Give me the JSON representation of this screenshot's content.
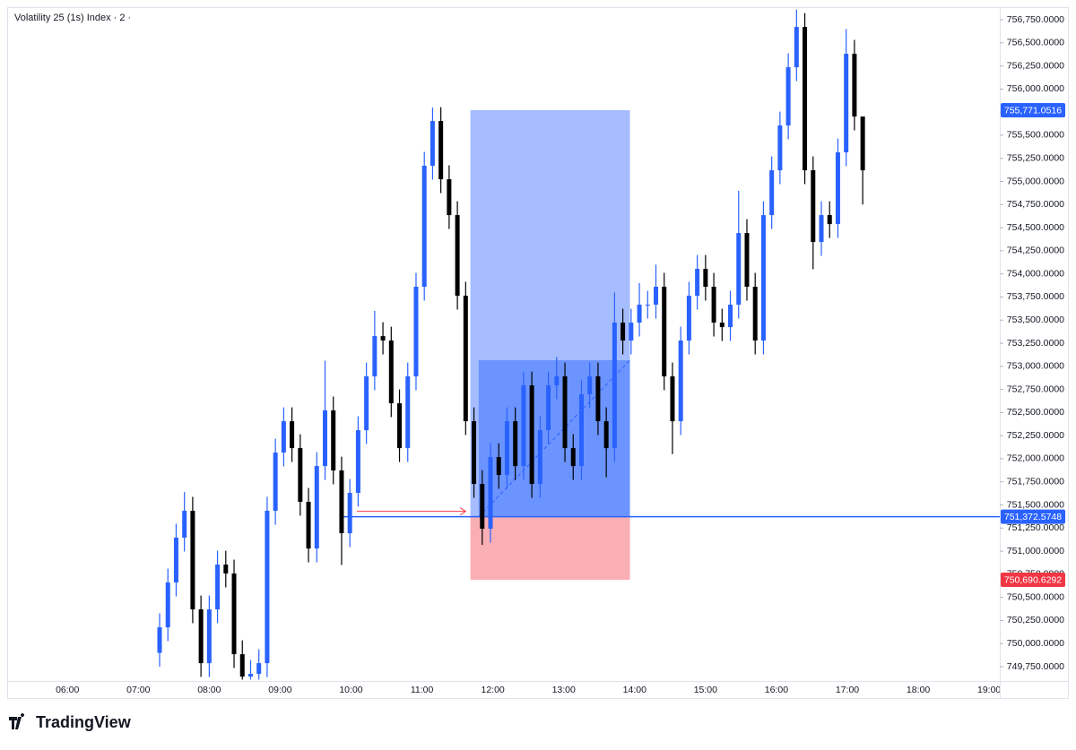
{
  "chart_data": {
    "type": "candlestick",
    "title": "Volatility 25 (1s) Index · 2 ·",
    "up_color": "#2962ff",
    "down_color": "#000000",
    "x": [
      "07:18",
      "07:25",
      "07:32",
      "07:39",
      "07:46",
      "07:53",
      "08:00",
      "08:07",
      "08:14",
      "08:21",
      "08:28",
      "08:35",
      "08:42",
      "08:49",
      "08:56",
      "09:03",
      "09:10",
      "09:17",
      "09:24",
      "09:31",
      "09:38",
      "09:45",
      "09:52",
      "09:59",
      "10:06",
      "10:13",
      "10:20",
      "10:27",
      "10:34",
      "10:41",
      "10:48",
      "10:55",
      "11:02",
      "11:09",
      "11:16",
      "11:23",
      "11:30",
      "11:37",
      "11:44",
      "11:51",
      "11:58",
      "12:05",
      "12:12",
      "12:19",
      "12:26",
      "12:33",
      "12:40",
      "12:47",
      "12:54",
      "13:01",
      "13:08",
      "13:15",
      "13:22",
      "13:29",
      "13:36",
      "13:43",
      "13:50",
      "13:57",
      "14:04",
      "14:11",
      "14:18",
      "14:25",
      "14:32",
      "14:39",
      "14:46",
      "14:53",
      "15:00",
      "15:07",
      "15:14",
      "15:21",
      "15:28",
      "15:35",
      "15:42",
      "15:49",
      "15:56",
      "16:03",
      "16:10",
      "16:17",
      "16:24",
      "16:31",
      "16:38",
      "16:45",
      "16:52",
      "16:59",
      "17:06",
      "17:13"
    ],
    "candles": {
      "open": [
        749900,
        750176,
        750661,
        751146,
        751437,
        750370,
        749788,
        750370,
        750855,
        750758,
        749885,
        749643,
        749672,
        749788,
        751437,
        752067,
        752406,
        752115,
        751534,
        751029,
        751921,
        752523,
        751873,
        751194,
        751631,
        752309,
        752891,
        753327,
        753279,
        752600,
        752115,
        752891,
        753861,
        755170,
        755654,
        755024,
        754636,
        753764,
        752406,
        751727,
        751243,
        752018,
        751824,
        752406,
        751921,
        752794,
        751727,
        752309,
        752794,
        752891,
        752115,
        751921,
        752697,
        752891,
        752406,
        752115,
        753473,
        753279,
        753473,
        753667,
        753667,
        753861,
        752891,
        752406,
        753279,
        753764,
        754055,
        753861,
        753473,
        753424,
        753667,
        754442,
        753861,
        753279,
        754636,
        755121,
        755606,
        756236,
        756672,
        755121,
        754345,
        754636,
        754539,
        755315,
        756382,
        755703
      ],
      "high": [
        750326,
        750811,
        751296,
        751640,
        751587,
        750520,
        750520,
        751005,
        751005,
        750908,
        750035,
        749822,
        749938,
        751587,
        752217,
        752556,
        752556,
        752265,
        751684,
        752071,
        753060,
        752673,
        752023,
        751781,
        752459,
        753041,
        753600,
        753477,
        753429,
        752750,
        753041,
        754011,
        755320,
        755800,
        755804,
        755174,
        754786,
        753914,
        752556,
        751877,
        752168,
        752168,
        752556,
        752556,
        752944,
        752944,
        752459,
        752944,
        753100,
        753041,
        752265,
        752847,
        753041,
        753041,
        752556,
        753800,
        753623,
        753623,
        753900,
        753817,
        754100,
        754011,
        753041,
        753429,
        753914,
        754205,
        754205,
        754011,
        753623,
        753817,
        754900,
        754592,
        754011,
        754786,
        755271,
        755756,
        756386,
        756860,
        756822,
        755271,
        754786,
        754786,
        755465,
        756650,
        756532,
        755550
      ],
      "low": [
        749750,
        750026,
        750511,
        750996,
        750220,
        749640,
        749638,
        750220,
        750608,
        749735,
        749610,
        749610,
        749610,
        749638,
        751287,
        751917,
        751965,
        751384,
        750879,
        750879,
        751771,
        751723,
        750850,
        751044,
        751481,
        752159,
        752741,
        753129,
        752450,
        751965,
        751965,
        752741,
        753711,
        755020,
        754874,
        754486,
        753614,
        752256,
        751577,
        751068,
        751093,
        751674,
        751674,
        751771,
        751771,
        751577,
        751577,
        752159,
        752644,
        751965,
        751771,
        751771,
        752547,
        752256,
        751800,
        751965,
        753129,
        753129,
        753323,
        753517,
        753517,
        752741,
        752050,
        752256,
        753129,
        753614,
        753711,
        753323,
        753274,
        753274,
        753517,
        753711,
        753129,
        753129,
        754486,
        754971,
        755456,
        756086,
        754971,
        754050,
        754195,
        754389,
        754389,
        755165,
        755553,
        754750
      ],
      "close": [
        750176,
        750661,
        751146,
        751437,
        750370,
        749788,
        750370,
        750855,
        750758,
        749885,
        749643,
        749672,
        749788,
        751437,
        752067,
        752406,
        752115,
        751534,
        751029,
        751921,
        752523,
        751873,
        751194,
        751631,
        752309,
        752891,
        753327,
        753279,
        752600,
        752115,
        752891,
        753861,
        755170,
        755654,
        755024,
        754636,
        753764,
        752406,
        751727,
        751243,
        752018,
        751824,
        752406,
        751921,
        752794,
        751727,
        752309,
        752794,
        752891,
        752115,
        751921,
        752697,
        752891,
        752406,
        752115,
        753473,
        753279,
        753473,
        753667,
        753667,
        753861,
        752891,
        752406,
        753279,
        753764,
        754055,
        753861,
        753473,
        753424,
        753667,
        754442,
        753861,
        753279,
        754636,
        755121,
        755606,
        756236,
        756672,
        755121,
        754345,
        754636,
        754539,
        755315,
        756382,
        755703,
        755121
      ]
    },
    "xlim": [
      "05:09",
      "19:09"
    ],
    "xticks": [
      "06:00",
      "07:00",
      "08:00",
      "09:00",
      "10:00",
      "11:00",
      "12:00",
      "13:00",
      "14:00",
      "15:00",
      "16:00",
      "17:00",
      "18:00",
      "19:00"
    ],
    "ylim": [
      749595,
      756886
    ],
    "yticks": [
      {
        "value": 749750,
        "label": "749,750.0000"
      },
      {
        "value": 750000,
        "label": "750,000.0000"
      },
      {
        "value": 750250,
        "label": "750,250.0000"
      },
      {
        "value": 750500,
        "label": "750,500.0000"
      },
      {
        "value": 750750,
        "label": "750,750.0000"
      },
      {
        "value": 751000,
        "label": "751,000.0000"
      },
      {
        "value": 751250,
        "label": "751,250.0000"
      },
      {
        "value": 751500,
        "label": "751,500.0000"
      },
      {
        "value": 751750,
        "label": "751,750.0000"
      },
      {
        "value": 752000,
        "label": "752,000.0000"
      },
      {
        "value": 752250,
        "label": "752,250.0000"
      },
      {
        "value": 752500,
        "label": "752,500.0000"
      },
      {
        "value": 752750,
        "label": "752,750.0000"
      },
      {
        "value": 753000,
        "label": "753,000.0000"
      },
      {
        "value": 753250,
        "label": "753,250.0000"
      },
      {
        "value": 753500,
        "label": "753,500.0000"
      },
      {
        "value": 753750,
        "label": "753,750.0000"
      },
      {
        "value": 754000,
        "label": "754,000.0000"
      },
      {
        "value": 754250,
        "label": "754,250.0000"
      },
      {
        "value": 754500,
        "label": "754,500.0000"
      },
      {
        "value": 754750,
        "label": "754,750.0000"
      },
      {
        "value": 755000,
        "label": "755,000.0000"
      },
      {
        "value": 755250,
        "label": "755,250.0000"
      },
      {
        "value": 755500,
        "label": "755,500.0000"
      },
      {
        "value": 755750,
        "label": "755,750.0000"
      },
      {
        "value": 756000,
        "label": "756,000.0000"
      },
      {
        "value": 756250,
        "label": "756,250.0000"
      },
      {
        "value": 756500,
        "label": "756,500.0000"
      },
      {
        "value": 756750,
        "label": "756,750.0000"
      }
    ],
    "position": {
      "target": {
        "value": 755771.0516,
        "label": "755,771.0516",
        "color": "#2962ff"
      },
      "entry": {
        "value": 751372.5748,
        "label": "751,372.5748",
        "color": "#2962ff"
      },
      "stop": {
        "value": 750690.6292,
        "label": "750,690.6292",
        "color": "#f23645"
      },
      "start": "11:41",
      "end": "13:56",
      "fill_from": "11:48",
      "fill_price": 753066,
      "arrow_from": "10:05",
      "arrow_to": "11:37"
    }
  },
  "brand": "TradingView"
}
